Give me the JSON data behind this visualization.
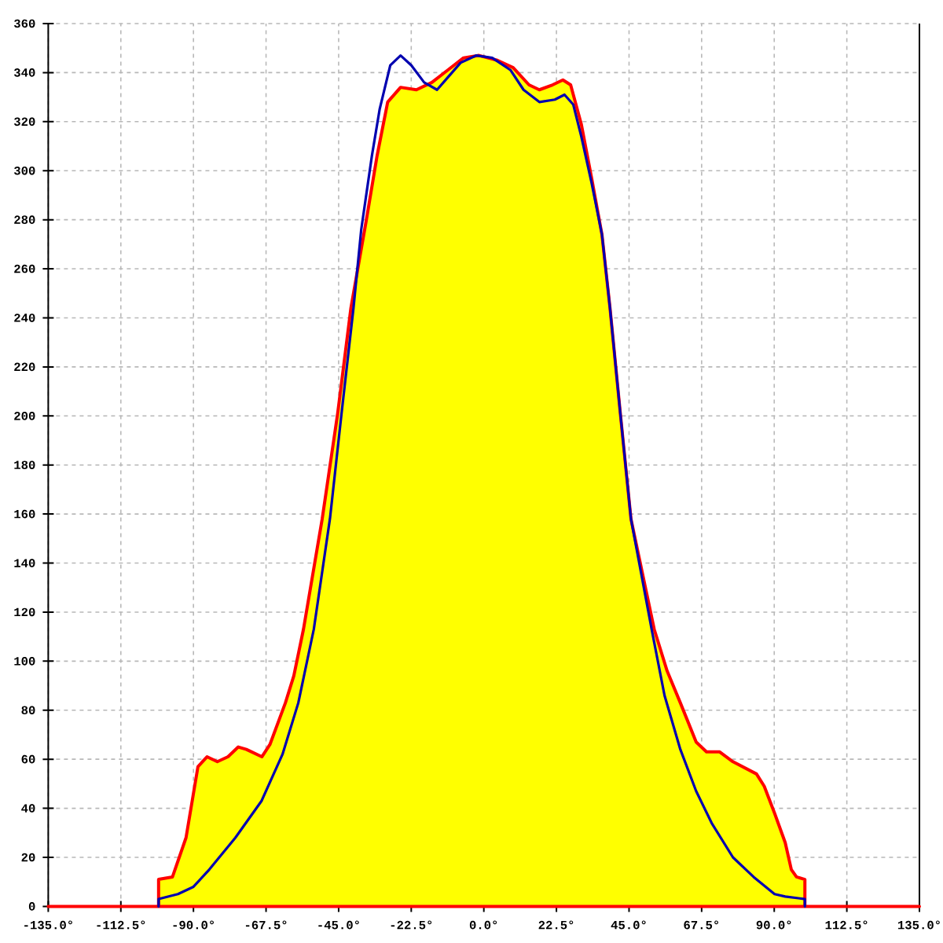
{
  "chart_data": {
    "type": "area",
    "series": [
      {
        "type": "line",
        "color": "#0000b0",
        "x": [
          -100.8,
          -100.8,
          -94.8,
          -90,
          -85.1,
          -77,
          -68.9,
          -62.4,
          -57.5,
          -52.7,
          -47.7,
          -44.1,
          -40.4,
          -38,
          -34.7,
          -32.3,
          -29,
          -25.8,
          -22.5,
          -18.5,
          -14.5,
          -11.2,
          -7.2,
          -2.3,
          2.6,
          8.3,
          12.3,
          17.2,
          22,
          25,
          27.7,
          30.2,
          33.4,
          36.6,
          39.1,
          42.3,
          45.6,
          52,
          56,
          60.9,
          65.8,
          70.6,
          77.2,
          83.6,
          90.1,
          93.4,
          99.5,
          99.5
        ],
        "values": [
          0,
          3,
          5,
          8,
          15,
          28,
          43,
          62,
          83,
          113,
          158,
          201,
          244,
          276,
          306,
          325,
          343,
          347,
          343,
          336,
          333,
          338,
          344,
          347,
          346,
          341,
          333,
          328,
          329,
          331,
          327,
          314,
          295,
          274,
          244,
          201,
          158,
          113,
          86,
          64,
          47,
          34,
          20,
          12,
          5,
          4,
          3,
          0
        ]
      },
      {
        "color": "#ff0000",
        "x": [
          -135,
          -100.8,
          -100.8,
          -96.5,
          -92.3,
          -88.6,
          -85.8,
          -82.6,
          -79.3,
          -76.1,
          -73.6,
          -68.8,
          -66.3,
          -61.5,
          -58.9,
          -55.9,
          -50.1,
          -45.3,
          -41.2,
          -36.4,
          -33.1,
          -29.8,
          -25.8,
          -20.9,
          -16.1,
          -11.2,
          -6.3,
          -1.5,
          4.2,
          9.1,
          14,
          17.2,
          21.3,
          24.5,
          26.9,
          30.2,
          33.4,
          36.6,
          39.1,
          42.3,
          45.6,
          52.8,
          56.8,
          60.9,
          65.8,
          69,
          73.1,
          77.2,
          84.5,
          86.9,
          90.1,
          93.4,
          95.3,
          96.9,
          99.5,
          99.5,
          135
        ],
        "values": [
          0,
          0,
          11,
          12,
          28,
          57,
          61,
          59,
          61,
          65,
          64,
          61,
          66,
          83,
          94,
          113,
          158,
          201,
          244,
          280,
          306,
          328,
          334,
          333,
          336,
          341,
          346,
          347,
          345,
          342,
          335,
          333,
          335,
          337,
          335,
          319,
          297,
          274,
          244,
          201,
          158,
          113,
          96,
          83,
          67,
          63,
          63,
          59,
          54,
          49,
          38,
          26,
          15,
          12,
          11,
          0,
          0
        ]
      }
    ],
    "xlim": [
      -135,
      135
    ],
    "ylim": [
      0,
      360
    ],
    "xticks": [
      {
        "value": -135,
        "label": "-135.0°"
      },
      {
        "value": -112.5,
        "label": "-112.5°"
      },
      {
        "value": -90,
        "label": "-90.0°"
      },
      {
        "value": -67.5,
        "label": "-67.5°"
      },
      {
        "value": -45,
        "label": "-45.0°"
      },
      {
        "value": -22.5,
        "label": "-22.5°"
      },
      {
        "value": 0,
        "label": "0.0°"
      },
      {
        "value": 22.5,
        "label": "22.5°"
      },
      {
        "value": 45,
        "label": "45.0°"
      },
      {
        "value": 67.5,
        "label": "67.5°"
      },
      {
        "value": 90,
        "label": "90.0°"
      },
      {
        "value": 112.5,
        "label": "112.5°"
      },
      {
        "value": 135,
        "label": "135.0°"
      }
    ],
    "yticks": [
      0,
      20,
      40,
      60,
      80,
      100,
      120,
      140,
      160,
      180,
      200,
      220,
      240,
      260,
      280,
      300,
      320,
      340,
      360
    ],
    "grid": true
  }
}
